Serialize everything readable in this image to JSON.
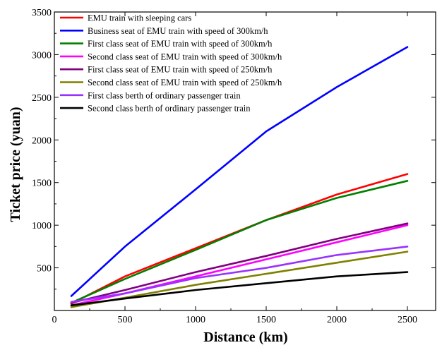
{
  "chart_data": {
    "type": "line",
    "title": "",
    "xlabel": "Distance (km)",
    "ylabel": "Ticket price (yuan)",
    "xlim": [
      0,
      2700
    ],
    "ylim": [
      0,
      3500
    ],
    "xticks": [
      0,
      500,
      1000,
      1500,
      2000,
      2500
    ],
    "yticks": [
      500,
      1000,
      1500,
      2000,
      2500,
      3000,
      3500
    ],
    "grid": false,
    "legend_position": "top-left",
    "series": [
      {
        "name": "EMU train with sleeping cars",
        "color": "#ff0000",
        "x": [
          120,
          500,
          1000,
          1500,
          2000,
          2500
        ],
        "y": [
          80,
          400,
          730,
          1060,
          1360,
          1600
        ]
      },
      {
        "name": "Business seat of EMU train with speed of 300km/h",
        "color": "#0000ff",
        "x": [
          120,
          500,
          1000,
          1500,
          2000,
          2500
        ],
        "y": [
          170,
          750,
          1420,
          2100,
          2620,
          3090
        ]
      },
      {
        "name": "First class seat of EMU train with speed of 300km/h",
        "color": "#008000",
        "x": [
          120,
          500,
          1000,
          1500,
          2000,
          2500
        ],
        "y": [
          90,
          370,
          710,
          1060,
          1320,
          1520
        ]
      },
      {
        "name": "Second class seat of EMU train with speed of 300km/h",
        "color": "#ff00ff",
        "x": [
          120,
          500,
          1000,
          1500,
          2000,
          2500
        ],
        "y": [
          60,
          200,
          400,
          600,
          800,
          1000
        ]
      },
      {
        "name": "First class seat of EMU train with speed of 250km/h",
        "color": "#800080",
        "x": [
          120,
          500,
          1000,
          1500,
          2000,
          2500
        ],
        "y": [
          90,
          240,
          450,
          640,
          840,
          1020
        ]
      },
      {
        "name": "Second class seat of EMU train with speed of 250km/h",
        "color": "#808000",
        "x": [
          120,
          500,
          1000,
          1500,
          2000,
          2500
        ],
        "y": [
          40,
          150,
          300,
          430,
          560,
          690
        ]
      },
      {
        "name": "First class berth of ordinary passenger train",
        "color": "#9932ff",
        "x": [
          120,
          500,
          1000,
          1500,
          2000,
          2500
        ],
        "y": [
          100,
          200,
          380,
          500,
          650,
          750
        ]
      },
      {
        "name": "Second class berth of ordinary passenger train",
        "color": "#000000",
        "x": [
          120,
          500,
          1000,
          1500,
          2000,
          2500
        ],
        "y": [
          60,
          140,
          240,
          320,
          400,
          450
        ]
      }
    ]
  }
}
